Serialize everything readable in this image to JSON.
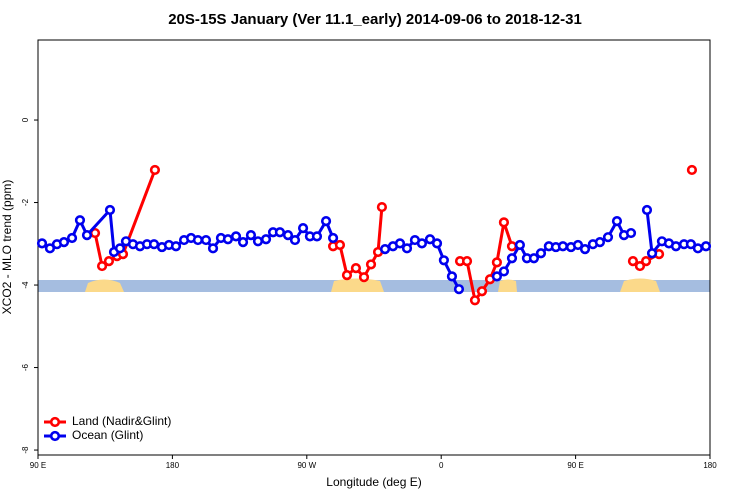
{
  "chart_data": {
    "type": "line",
    "title": "20S-15S January (Ver 11.1_early)   2014-09-06 to 2018-12-31",
    "x_label": "Longitude (deg E)",
    "y_label": "XCO2 - MLO trend (ppm)",
    "xlim": [
      90,
      540
    ],
    "ylim": [
      -8.12,
      1.94
    ],
    "xticks": [
      {
        "value": 90,
        "label": "90 E"
      },
      {
        "value": 180,
        "label": "180"
      },
      {
        "value": 270,
        "label": "90 W"
      },
      {
        "value": 360,
        "label": "0"
      },
      {
        "value": 450,
        "label": "90 E"
      },
      {
        "value": 540,
        "label": "180"
      }
    ],
    "yticks": [
      0,
      -2,
      -4,
      -6,
      -8
    ],
    "legend": "bottom-left",
    "series": [
      {
        "name": "Land (Nadir&Glint)",
        "color": "#ff0000",
        "x": [
          128.2,
          132.9,
          137.5,
          142.9,
          146.9,
          168.3,
          null,
          287.6,
          292.2,
          296.9,
          302.9,
          308.3,
          313.0,
          317.7,
          320.3,
          null,
          372.6,
          377.3,
          382.6,
          387.3,
          392.7,
          397.3,
          402.0,
          407.4,
          null,
          488.4,
          493.1,
          497.2,
          505.9,
          null,
          527.9
        ],
        "values": [
          -2.74,
          -3.54,
          -3.42,
          -3.3,
          -3.25,
          -1.21,
          null,
          -3.06,
          -3.03,
          -3.76,
          -3.59,
          -3.81,
          -3.5,
          -3.2,
          -2.11,
          null,
          -3.42,
          -3.42,
          -4.37,
          -4.15,
          -3.86,
          -3.45,
          -2.48,
          -3.06,
          null,
          -3.42,
          -3.54,
          -3.42,
          -3.25,
          null,
          -1.21
        ]
      },
      {
        "name": "Ocean (Glint)",
        "color": "#0000ee",
        "x": [
          92.7,
          98.0,
          102.7,
          107.4,
          112.8,
          118.1,
          122.8,
          138.2,
          140.9,
          144.9,
          148.9,
          153.6,
          158.3,
          163.0,
          167.7,
          173.0,
          177.7,
          182.4,
          187.8,
          192.5,
          197.1,
          202.5,
          207.2,
          212.5,
          217.2,
          222.6,
          227.3,
          232.6,
          237.3,
          242.7,
          247.4,
          252.0,
          257.4,
          262.1,
          267.5,
          272.1,
          276.8,
          282.9,
          287.6,
          null,
          322.4,
          327.7,
          332.4,
          337.1,
          342.4,
          347.1,
          352.5,
          357.2,
          361.8,
          367.2,
          371.9,
          null,
          397.3,
          402.0,
          407.4,
          412.7,
          417.4,
          422.1,
          426.8,
          432.1,
          436.8,
          441.5,
          446.9,
          451.6,
          456.3,
          461.6,
          466.3,
          471.7,
          477.7,
          482.4,
          487.1,
          null,
          497.8,
          501.2,
          507.8,
          512.5,
          517.2,
          522.6,
          527.2,
          531.9,
          537.3
        ],
        "values": [
          -2.99,
          -3.11,
          -3.01,
          -2.96,
          -2.86,
          -2.43,
          -2.79,
          -2.18,
          -3.2,
          -3.11,
          -2.94,
          -3.01,
          -3.06,
          -3.01,
          -3.01,
          -3.08,
          -3.03,
          -3.06,
          -2.91,
          -2.86,
          -2.91,
          -2.91,
          -3.11,
          -2.86,
          -2.89,
          -2.82,
          -2.96,
          -2.79,
          -2.94,
          -2.89,
          -2.72,
          -2.72,
          -2.79,
          -2.91,
          -2.62,
          -2.82,
          -2.82,
          -2.45,
          -2.86,
          null,
          -3.13,
          -3.06,
          -2.99,
          -3.11,
          -2.91,
          -2.99,
          -2.89,
          -2.99,
          -3.4,
          -3.79,
          -4.1,
          null,
          -3.79,
          -3.67,
          -3.35,
          -3.03,
          -3.35,
          -3.35,
          -3.23,
          -3.06,
          -3.08,
          -3.06,
          -3.08,
          -3.03,
          -3.13,
          -3.01,
          -2.96,
          -2.84,
          -2.45,
          -2.79,
          -2.74,
          null,
          -2.18,
          -3.23,
          -2.94,
          -2.99,
          -3.06,
          -3.01,
          -3.01,
          -3.11,
          -3.06
        ]
      }
    ]
  }
}
